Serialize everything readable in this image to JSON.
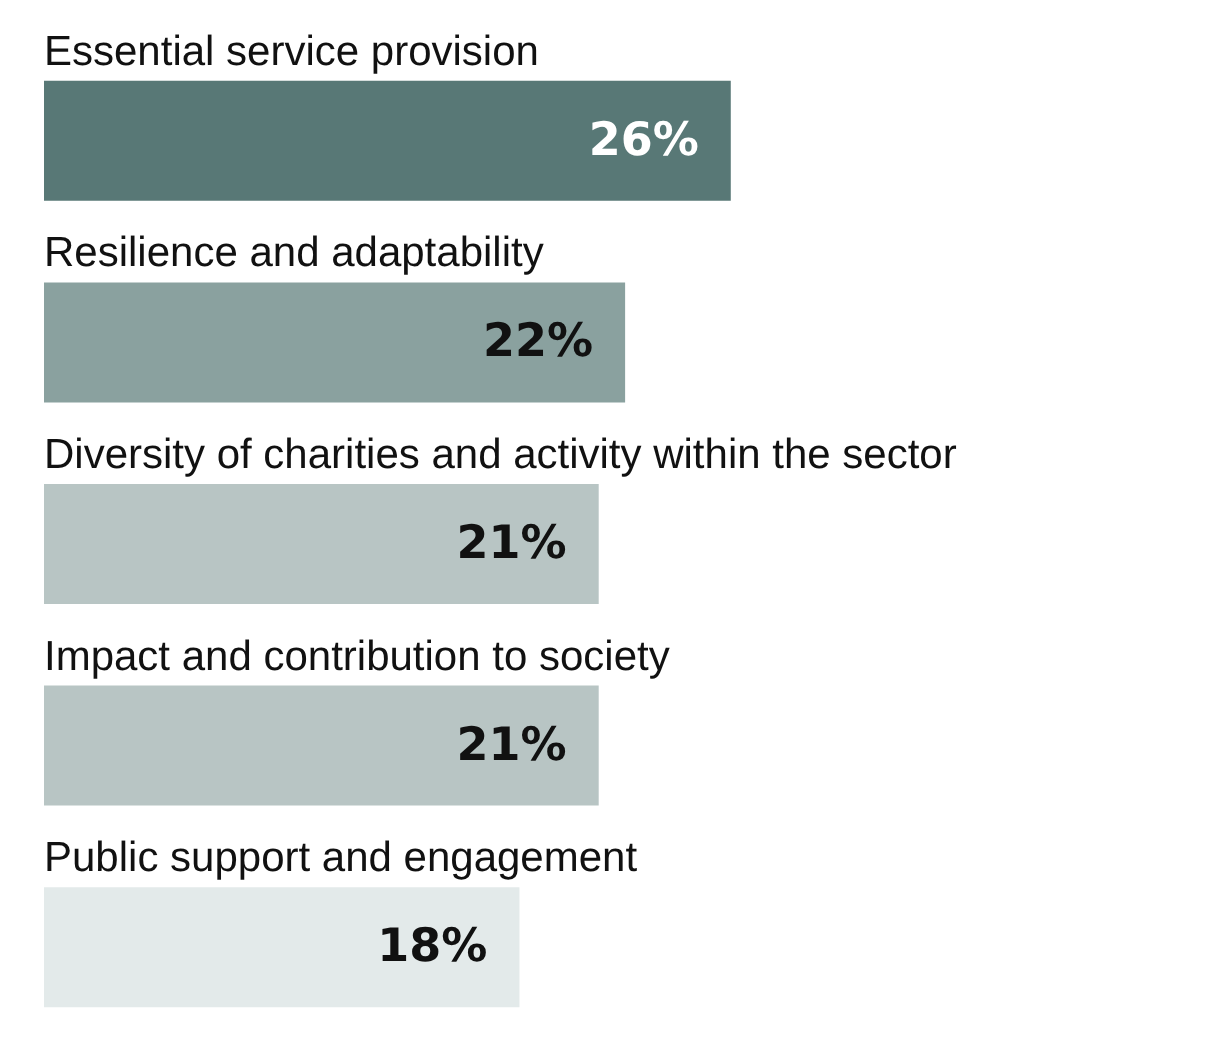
{
  "chart_data": {
    "type": "bar",
    "orientation": "horizontal",
    "tick_labels": false,
    "data_labels": true,
    "categories": [
      "Essential service provision",
      "Resilience and adaptability",
      "Diversity of charities and activity within the sector",
      "Impact and contribution to society",
      "Public support and engagement"
    ],
    "values": [
      26,
      22,
      21,
      21,
      18
    ],
    "value_labels": [
      "26%",
      "22%",
      "21%",
      "21%",
      "18%"
    ],
    "colors": [
      "#587876",
      "#8aa19f",
      "#b8c5c4",
      "#b8c5c4",
      "#e3eaea"
    ]
  }
}
